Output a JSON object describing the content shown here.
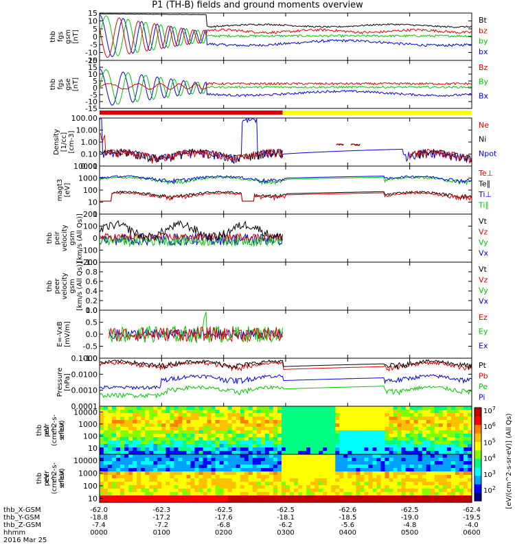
{
  "title": "P1 (TH-B) fields and ground moments overview",
  "date_label": "2016 Mar 25",
  "chart_data": {
    "type": "line",
    "time_ticks": [
      "0000",
      "0100",
      "0200",
      "0300",
      "0400",
      "0500",
      "0600"
    ],
    "x_start": 0,
    "x_end": 6,
    "eph_rows": [
      {
        "label": "thb_X-GSM",
        "values": [
          "-62.0",
          "-62.3",
          "-62.5",
          "-62.5",
          "-62.6",
          "-62.5",
          "-62.4"
        ]
      },
      {
        "label": "thb_Y-GSM",
        "values": [
          "-18.8",
          "-17.2",
          "-17.6",
          "-18.1",
          "-18.5",
          "-19.0",
          "-19.5"
        ]
      },
      {
        "label": "thb_Z-GSM",
        "values": [
          "-7.4",
          "-7.2",
          "-6.8",
          "-6.2",
          "-5.6",
          "-4.8",
          "-4.0"
        ]
      },
      {
        "label": "hhmm",
        "values": [
          "0000",
          "0100",
          "0200",
          "0300",
          "0400",
          "0500",
          "0600"
        ]
      }
    ],
    "mode_bar": {
      "segments": [
        {
          "from": 0,
          "to": 2.95,
          "color": "#e00000"
        },
        {
          "from": 2.95,
          "to": 6,
          "color": "#ffff00"
        }
      ]
    },
    "panels": [
      {
        "id": "fgs-gsm",
        "ylabel": [
          "thb",
          "fgs",
          "gsm",
          "[nT]"
        ],
        "ylim": [
          -15,
          15
        ],
        "log": false,
        "ticks": [
          "15",
          "10",
          "5",
          "0",
          "-5",
          "-10",
          "-15"
        ],
        "tick_vals": [
          15,
          10,
          5,
          0,
          -5,
          -10,
          -15
        ],
        "series": [
          {
            "name": "Bt",
            "color": "#000000"
          },
          {
            "name": "bz",
            "color": "#e00000"
          },
          {
            "name": "by",
            "color": "#00c800"
          },
          {
            "name": "bx",
            "color": "#0000e0"
          }
        ]
      },
      {
        "id": "fgs-gse",
        "ylabel": [
          "thb",
          "fgs",
          "gse",
          "[nT]"
        ],
        "ylim": [
          -15,
          20
        ],
        "log": false,
        "ticks": [
          "20",
          "15",
          "10",
          "5",
          "0",
          "-5",
          "-10",
          "-15"
        ],
        "tick_vals": [
          20,
          15,
          10,
          5,
          0,
          -5,
          -10,
          -15
        ],
        "series": [
          {
            "name": "Bz",
            "color": "#e00000"
          },
          {
            "name": "By",
            "color": "#00c800"
          },
          {
            "name": "Bx",
            "color": "#0000e0"
          }
        ]
      },
      {
        "id": "density",
        "ylabel": [
          "Density",
          "[1/cc]",
          "[cm-3]"
        ],
        "ylim": [
          0.01,
          100
        ],
        "log": true,
        "ticks": [
          "100.00",
          "10.00",
          "1.00",
          "0.10",
          "0.01"
        ],
        "tick_vals": [
          100,
          10,
          1,
          0.1,
          0.01
        ],
        "series": [
          {
            "name": "Ne",
            "color": "#e00000"
          },
          {
            "name": "Ni",
            "color": "#000000"
          },
          {
            "name": "Npot",
            "color": "#0000e0"
          }
        ]
      },
      {
        "id": "temperature",
        "ylabel": [
          "magt3",
          "[eV]"
        ],
        "ylim": [
          1,
          10000
        ],
        "log": true,
        "ticks": [
          "10000",
          "1000",
          "100",
          "10",
          "1"
        ],
        "tick_vals": [
          10000,
          1000,
          100,
          10,
          1
        ],
        "series": [
          {
            "name": "Te⊥",
            "color": "#e00000"
          },
          {
            "name": "Te∥",
            "color": "#000000"
          },
          {
            "name": "Ti⊥",
            "color": "#0000e0"
          },
          {
            "name": "Ti∥",
            "color": "#00c800"
          }
        ]
      },
      {
        "id": "peir-vel",
        "ylabel": [
          "thb",
          "peir",
          "velocity",
          "gsm",
          "[km/s (All Qs)]"
        ],
        "ylim": [
          -200,
          200
        ],
        "log": false,
        "ticks": [
          "200",
          "100",
          "0",
          "-100",
          "-200"
        ],
        "tick_vals": [
          200,
          100,
          0,
          -100,
          -200
        ],
        "series": [
          {
            "name": "Vt",
            "color": "#000000"
          },
          {
            "name": "Vz",
            "color": "#e00000"
          },
          {
            "name": "Vy",
            "color": "#00c800"
          },
          {
            "name": "Vx",
            "color": "#0000e0"
          }
        ]
      },
      {
        "id": "peer-vel",
        "ylabel": [
          "thb",
          "peer",
          "velocity",
          "gsm",
          "[km/s (All Qs)]"
        ],
        "ylim": [
          0,
          1
        ],
        "log": false,
        "ticks": [
          "1.0",
          "0.8",
          "0.6",
          "0.4",
          "0.2",
          "0.0"
        ],
        "tick_vals": [
          1,
          0.8,
          0.6,
          0.4,
          0.2,
          0
        ],
        "series": [
          {
            "name": "Vt",
            "color": "#000000"
          },
          {
            "name": "Vz",
            "color": "#e00000"
          },
          {
            "name": "Vy",
            "color": "#00c800"
          },
          {
            "name": "Vx",
            "color": "#0000e0"
          }
        ]
      },
      {
        "id": "efield",
        "ylabel": [
          "E=-VxB",
          "[mV/m]"
        ],
        "ylim": [
          -1,
          1
        ],
        "log": false,
        "ticks": [
          "1.0",
          "0.5",
          "0.0",
          "-0.5",
          "-1.0"
        ],
        "tick_vals": [
          1,
          0.5,
          0,
          -0.5,
          -1
        ],
        "series": [
          {
            "name": "Ez",
            "color": "#e00000"
          },
          {
            "name": "Ey",
            "color": "#00c800"
          },
          {
            "name": "Ex",
            "color": "#0000e0"
          }
        ]
      },
      {
        "id": "pressure",
        "ylabel": [
          "Pressure",
          "[nPa]"
        ],
        "ylim": [
          0.0001,
          0.1
        ],
        "log": true,
        "ticks": [
          "0.1000",
          "0.0100",
          "0.0010",
          "0.0001"
        ],
        "tick_vals": [
          0.1,
          0.01,
          0.001,
          0.0001
        ],
        "series": [
          {
            "name": "Pt",
            "color": "#000000"
          },
          {
            "name": "Pb",
            "color": "#e00000"
          },
          {
            "name": "Pe",
            "color": "#00c800"
          },
          {
            "name": "Pi",
            "color": "#0000e0"
          }
        ]
      }
    ],
    "spectrograms": [
      {
        "id": "peir-eflux",
        "ylabel": [
          "thb",
          "peir",
          "en",
          "eflux",
          "eV",
          "(cm^2-s-",
          "sr-eV)"
        ],
        "ylim": [
          3,
          30000
        ],
        "log": true,
        "ticks": [
          "10000",
          "1000",
          "100",
          "10"
        ],
        "tick_vals": [
          10000,
          1000,
          100,
          10
        ]
      },
      {
        "id": "peer-eflux",
        "ylabel": [
          "thb",
          "peer",
          "en",
          "eflux",
          "eV",
          "(cm^2-s-",
          "sr-eV)"
        ],
        "ylim": [
          5,
          30000
        ],
        "log": true,
        "ticks": [
          "10000",
          "1000",
          "100",
          "10"
        ],
        "tick_vals": [
          10000,
          1000,
          100,
          10
        ]
      }
    ],
    "colorbar": {
      "label": "[eV/(cm^2-s-sr-eV)] (All Qs)",
      "ticks": [
        "10^7",
        "10^6",
        "10^5",
        "10^4",
        "10^3",
        "10^2"
      ],
      "colors": [
        "#000080",
        "#0000ff",
        "#00a0ff",
        "#00ffff",
        "#00ff80",
        "#80ff00",
        "#ffff00",
        "#ffc000",
        "#ff8000",
        "#ff0000",
        "#c00000"
      ]
    }
  }
}
